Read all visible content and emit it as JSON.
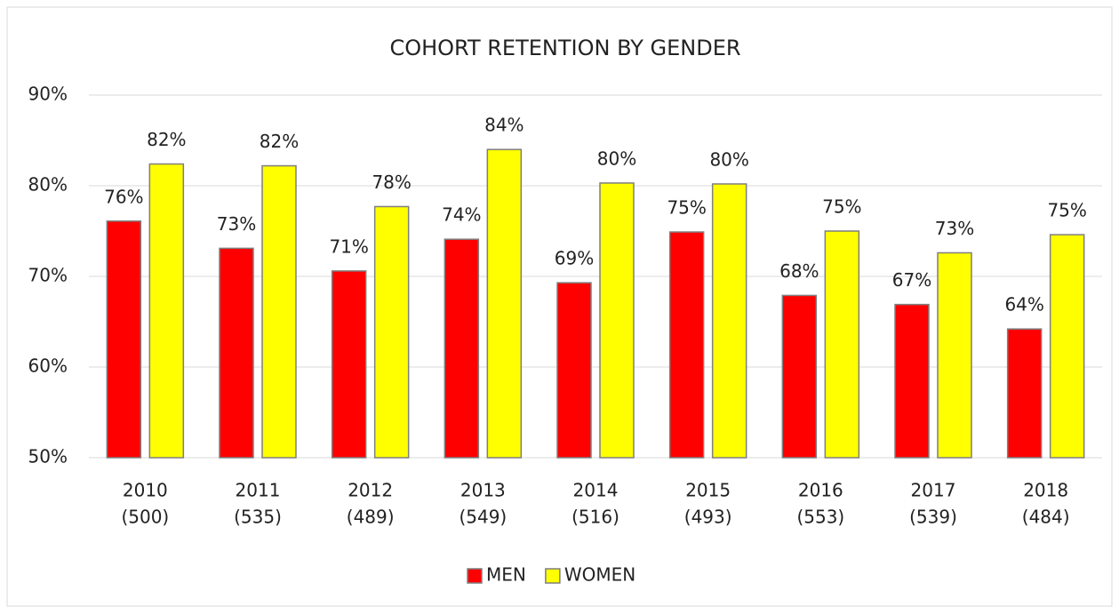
{
  "chart_data": {
    "type": "bar",
    "title": "COHORT RETENTION BY GENDER",
    "categories": [
      [
        "2010",
        "(500)"
      ],
      [
        "2011",
        "(535)"
      ],
      [
        "2012",
        "(489)"
      ],
      [
        "2013",
        "(549)"
      ],
      [
        "2014",
        "(516)"
      ],
      [
        "2015",
        "(493)"
      ],
      [
        "2016",
        "(553)"
      ],
      [
        "2017",
        "(539)"
      ],
      [
        "2018",
        "(484)"
      ]
    ],
    "series": [
      {
        "name": "MEN",
        "color": "#ff0000",
        "values": [
          76.1,
          73.1,
          70.6,
          74.1,
          69.3,
          74.9,
          67.9,
          66.9,
          64.2
        ],
        "value_labels": [
          "76%",
          "73%",
          "71%",
          "74%",
          "69%",
          "75%",
          "68%",
          "67%",
          "64%"
        ]
      },
      {
        "name": "WOMEN",
        "color": "#ffff00",
        "values": [
          82.4,
          82.2,
          77.7,
          84.0,
          80.3,
          80.2,
          75.0,
          72.6,
          74.6
        ],
        "value_labels": [
          "82%",
          "82%",
          "78%",
          "84%",
          "80%",
          "80%",
          "75%",
          "73%",
          "75%"
        ]
      }
    ],
    "ylim": [
      50,
      90
    ],
    "yticks": [
      {
        "value": 50,
        "label": "50%"
      },
      {
        "value": 60,
        "label": "60%"
      },
      {
        "value": 70,
        "label": "70%"
      },
      {
        "value": 80,
        "label": "80%"
      },
      {
        "value": 90,
        "label": "90%"
      }
    ],
    "grid": true,
    "legend": "bottom"
  }
}
